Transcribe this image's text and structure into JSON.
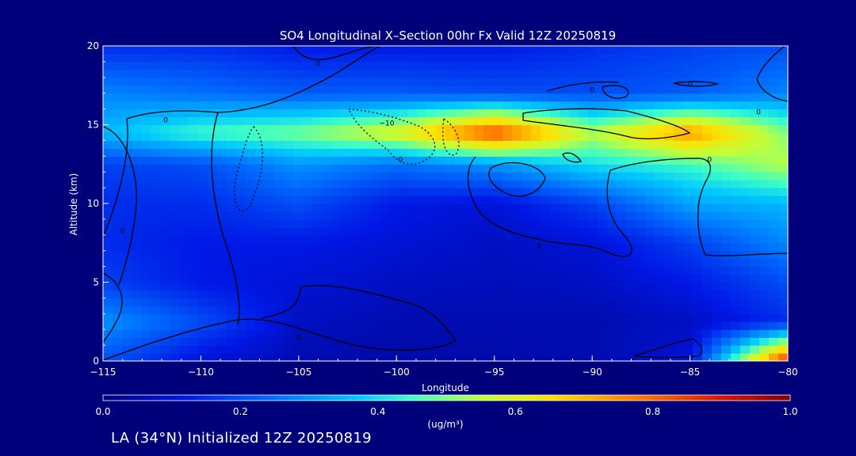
{
  "chart_data": {
    "type": "heatmap",
    "title": "SO4 Longitudinal X–Section 00hr  Fx Valid 12Z 20250819",
    "xlabel": "Longitude",
    "ylabel": "Altitude (km)",
    "xlim": [
      -115,
      -80
    ],
    "ylim": [
      0,
      20
    ],
    "xticks": [
      "−115",
      "−110",
      "−105",
      "−100",
      "−95",
      "−90",
      "−85",
      "−80"
    ],
    "yticks": [
      "0",
      "5",
      "10",
      "15",
      "20"
    ],
    "grid": false,
    "x": [
      -115,
      -110,
      -105,
      -100,
      -95,
      -90,
      -85,
      -80
    ],
    "y": [
      0,
      2.5,
      5,
      7.5,
      10,
      12.5,
      14.5,
      17,
      20
    ],
    "z": [
      [
        0.2,
        0.1,
        0.06,
        0.05,
        0.05,
        0.06,
        0.1,
        0.9
      ],
      [
        0.3,
        0.2,
        0.08,
        0.06,
        0.06,
        0.06,
        0.08,
        0.15
      ],
      [
        0.18,
        0.12,
        0.1,
        0.08,
        0.07,
        0.08,
        0.12,
        0.2
      ],
      [
        0.15,
        0.12,
        0.12,
        0.1,
        0.08,
        0.1,
        0.18,
        0.28
      ],
      [
        0.15,
        0.15,
        0.2,
        0.12,
        0.1,
        0.18,
        0.32,
        0.35
      ],
      [
        0.18,
        0.2,
        0.3,
        0.25,
        0.3,
        0.4,
        0.45,
        0.55
      ],
      [
        0.35,
        0.45,
        0.5,
        0.6,
        0.85,
        0.55,
        0.75,
        0.5
      ],
      [
        0.28,
        0.25,
        0.22,
        0.22,
        0.2,
        0.2,
        0.22,
        0.28
      ],
      [
        0.15,
        0.15,
        0.12,
        0.12,
        0.12,
        0.15,
        0.18,
        0.2
      ]
    ],
    "colorbar": {
      "min": 0.0,
      "max": 1.0,
      "ticks": [
        "0.0",
        "0.2",
        "0.4",
        "0.6",
        "0.8",
        "1.0"
      ],
      "unit_label": "(ug/m³)"
    },
    "contour_labels": [
      {
        "text": "0",
        "x": -104,
        "y": 18.9
      },
      {
        "text": "0",
        "x": -90,
        "y": 17.2
      },
      {
        "text": "0",
        "x": -85,
        "y": 17.6
      },
      {
        "text": "0",
        "x": -81.5,
        "y": 15.8
      },
      {
        "text": "0",
        "x": -111.8,
        "y": 15.3
      },
      {
        "text": "−10",
        "x": -100.5,
        "y": 15.1
      },
      {
        "text": "0",
        "x": -99.8,
        "y": 12.8
      },
      {
        "text": "0",
        "x": -84,
        "y": 12.8
      },
      {
        "text": "0",
        "x": -114,
        "y": 8.3
      },
      {
        "text": "0",
        "x": -92.7,
        "y": 7.3
      },
      {
        "text": "0",
        "x": -105,
        "y": 1.5
      }
    ],
    "colors": {
      "background": "#00007a",
      "text": "#ffffff",
      "contour": "#000000"
    }
  },
  "footer": "LA (34°N) Initialized 12Z 20250819"
}
